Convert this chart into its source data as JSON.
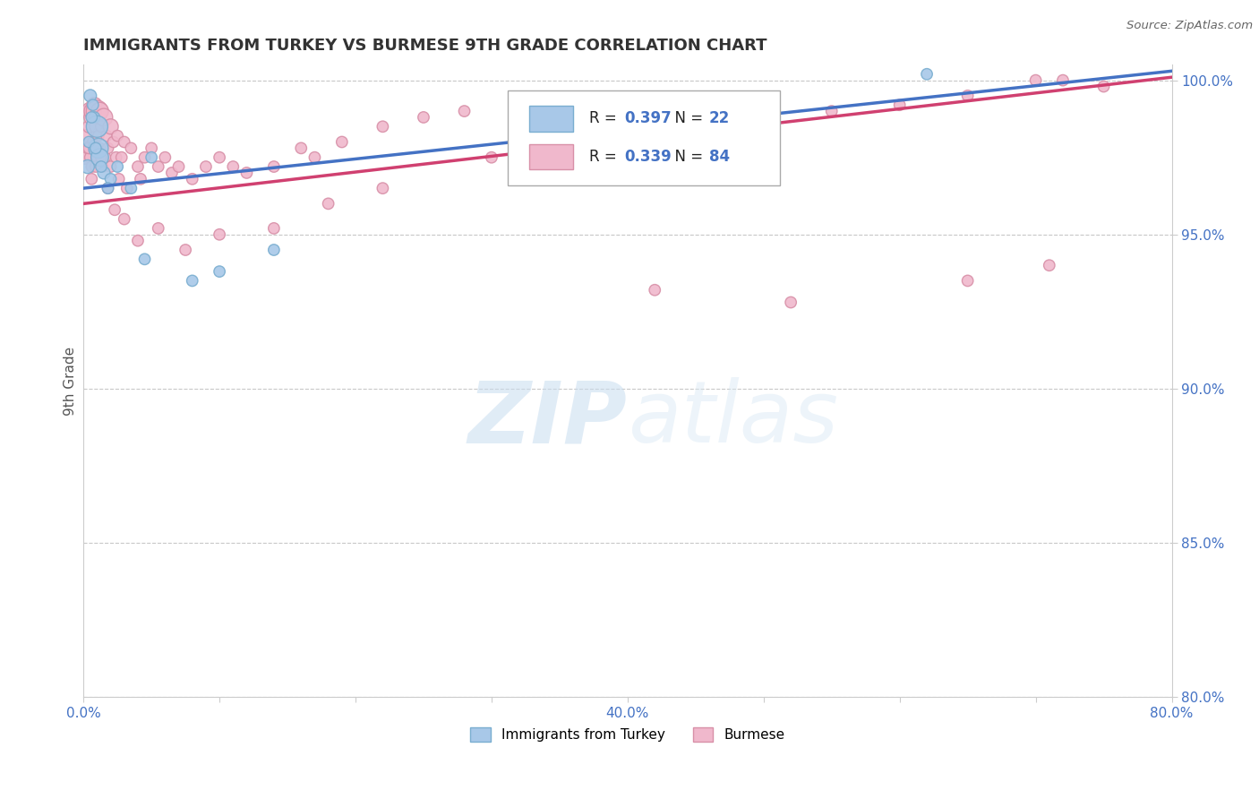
{
  "title": "IMMIGRANTS FROM TURKEY VS BURMESE 9TH GRADE CORRELATION CHART",
  "source_text": "Source: ZipAtlas.com",
  "ylabel": "9th Grade",
  "xlim": [
    0.0,
    80.0
  ],
  "ylim": [
    80.0,
    100.5
  ],
  "xticks": [
    0.0,
    10.0,
    20.0,
    30.0,
    40.0,
    50.0,
    60.0,
    70.0,
    80.0
  ],
  "yticks": [
    80.0,
    85.0,
    90.0,
    95.0,
    100.0
  ],
  "xtick_labels": [
    "0.0%",
    "",
    "",
    "",
    "40.0%",
    "",
    "",
    "",
    "80.0%"
  ],
  "ytick_labels": [
    "80.0%",
    "85.0%",
    "90.0%",
    "95.0%",
    "100.0%"
  ],
  "turkey_color": "#a8c8e8",
  "turkey_edge_color": "#7aaed0",
  "burmese_color": "#f0b8cc",
  "burmese_edge_color": "#d890a8",
  "turkey_line_color": "#4472c4",
  "burmese_line_color": "#d04070",
  "legend_turkey_label": "Immigrants from Turkey",
  "legend_burmese_label": "Burmese",
  "turkey_R": 0.397,
  "turkey_N": 22,
  "burmese_R": 0.339,
  "burmese_N": 84,
  "background_color": "#ffffff",
  "grid_color": "#c8c8c8",
  "axis_color": "#4472c4",
  "watermark_zip": "ZIP",
  "watermark_atlas": "atlas",
  "turkey_line_x0": 0.0,
  "turkey_line_y0": 96.5,
  "turkey_line_x1": 80.0,
  "turkey_line_y1": 100.3,
  "burmese_line_x0": 0.0,
  "burmese_line_y0": 96.0,
  "burmese_line_x1": 80.0,
  "burmese_line_y1": 100.1,
  "turkey_x": [
    0.3,
    0.5,
    0.7,
    0.8,
    1.0,
    1.1,
    1.2,
    1.5,
    2.0,
    2.5,
    3.5,
    5.0,
    8.0,
    62.0,
    0.4,
    0.6,
    0.9,
    1.3,
    1.8,
    4.5,
    10.0,
    14.0
  ],
  "turkey_y": [
    97.2,
    99.5,
    99.2,
    98.8,
    98.5,
    97.8,
    97.5,
    97.0,
    96.8,
    97.2,
    96.5,
    97.5,
    93.5,
    100.2,
    98.0,
    98.8,
    97.8,
    97.2,
    96.5,
    94.2,
    93.8,
    94.5
  ],
  "turkey_s": [
    120,
    100,
    80,
    80,
    300,
    250,
    200,
    100,
    80,
    80,
    80,
    80,
    80,
    80,
    80,
    80,
    80,
    80,
    80,
    80,
    80,
    80
  ],
  "burmese_x": [
    0.1,
    0.2,
    0.3,
    0.3,
    0.4,
    0.5,
    0.5,
    0.6,
    0.6,
    0.7,
    0.7,
    0.8,
    0.8,
    0.9,
    1.0,
    1.0,
    1.1,
    1.2,
    1.2,
    1.3,
    1.4,
    1.5,
    1.6,
    1.7,
    1.8,
    2.0,
    2.0,
    2.2,
    2.4,
    2.5,
    2.6,
    2.8,
    3.0,
    3.2,
    3.5,
    4.0,
    4.2,
    4.5,
    5.0,
    5.5,
    6.0,
    6.5,
    7.0,
    8.0,
    9.0,
    10.0,
    11.0,
    12.0,
    14.0,
    16.0,
    17.0,
    19.0,
    22.0,
    25.0,
    28.0,
    35.0,
    40.0,
    45.0,
    50.0,
    55.0,
    60.0,
    65.0,
    70.0,
    72.0,
    75.0,
    0.4,
    0.6,
    0.9,
    1.3,
    1.8,
    2.3,
    3.0,
    4.0,
    5.5,
    7.5,
    10.0,
    14.0,
    18.0,
    22.0,
    30.0,
    42.0,
    52.0,
    65.0,
    71.0
  ],
  "burmese_y": [
    97.5,
    98.2,
    99.0,
    97.8,
    98.5,
    99.0,
    97.5,
    98.8,
    97.2,
    99.0,
    98.0,
    99.2,
    97.8,
    98.5,
    99.0,
    97.5,
    98.2,
    99.0,
    97.8,
    98.5,
    97.2,
    98.8,
    97.5,
    98.2,
    97.8,
    98.5,
    97.2,
    98.0,
    97.5,
    98.2,
    96.8,
    97.5,
    98.0,
    96.5,
    97.8,
    97.2,
    96.8,
    97.5,
    97.8,
    97.2,
    97.5,
    97.0,
    97.2,
    96.8,
    97.2,
    97.5,
    97.2,
    97.0,
    97.2,
    97.8,
    97.5,
    98.0,
    98.5,
    98.8,
    99.0,
    99.2,
    99.0,
    99.0,
    99.2,
    99.0,
    99.2,
    99.5,
    100.0,
    100.0,
    99.8,
    97.8,
    96.8,
    97.2,
    97.5,
    96.5,
    95.8,
    95.5,
    94.8,
    95.2,
    94.5,
    95.0,
    95.2,
    96.0,
    96.5,
    97.5,
    93.2,
    92.8,
    93.5,
    94.0
  ],
  "burmese_s": [
    120,
    100,
    80,
    80,
    100,
    200,
    80,
    150,
    80,
    200,
    80,
    150,
    80,
    100,
    300,
    80,
    80,
    200,
    80,
    80,
    80,
    200,
    80,
    80,
    80,
    150,
    80,
    80,
    80,
    80,
    80,
    80,
    80,
    80,
    80,
    80,
    80,
    80,
    80,
    80,
    80,
    80,
    80,
    80,
    80,
    80,
    80,
    80,
    80,
    80,
    80,
    80,
    80,
    80,
    80,
    80,
    80,
    80,
    80,
    80,
    80,
    80,
    80,
    80,
    80,
    80,
    80,
    80,
    80,
    80,
    80,
    80,
    80,
    80,
    80,
    80,
    80,
    80,
    80,
    80,
    80,
    80,
    80,
    80
  ]
}
